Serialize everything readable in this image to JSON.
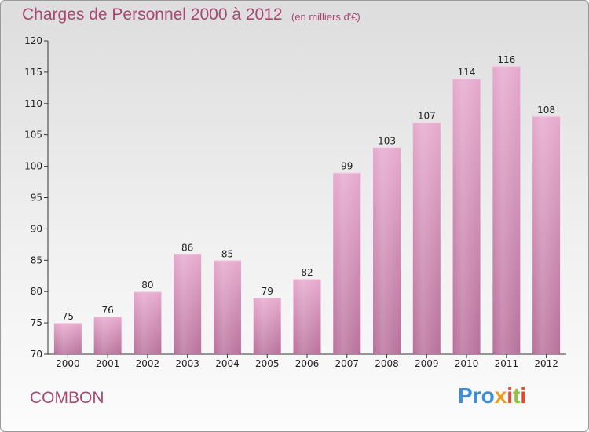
{
  "header": {
    "title": "Charges de Personnel 2000 à 2012",
    "subtitle": "(en milliers d'€)"
  },
  "footer": {
    "commune": "COMBON",
    "logo": "Proxiti"
  },
  "colors": {
    "title": "#a8486e",
    "bar_top": "#e6a9cd",
    "bar_bottom": "#b8709b"
  },
  "chart_data": {
    "type": "bar",
    "title": "Charges de Personnel 2000 à 2012",
    "subtitle": "(en milliers d'€)",
    "xlabel": "",
    "ylabel": "",
    "categories": [
      "2000",
      "2001",
      "2002",
      "2003",
      "2004",
      "2005",
      "2006",
      "2007",
      "2008",
      "2009",
      "2010",
      "2011",
      "2012"
    ],
    "values": [
      75,
      76,
      80,
      86,
      85,
      79,
      82,
      99,
      103,
      107,
      114,
      116,
      108
    ],
    "ylim": [
      70,
      120
    ],
    "yticks": [
      70,
      75,
      80,
      85,
      90,
      95,
      100,
      105,
      110,
      115,
      120
    ],
    "grid": false,
    "legend": "none"
  }
}
